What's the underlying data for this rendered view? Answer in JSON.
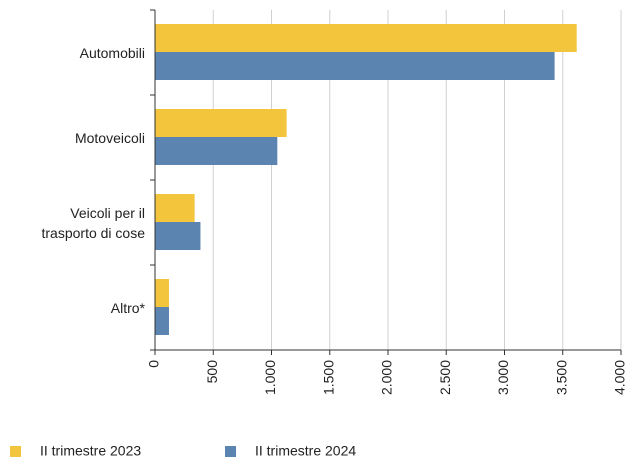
{
  "chart_data": {
    "type": "bar",
    "orientation": "horizontal",
    "categories": [
      "Automobili",
      "Motoveicoli",
      "Veicoli per il trasporto di cose",
      "Altro*"
    ],
    "series": [
      {
        "name": "II trimestre 2023",
        "color": "#f2c53d",
        "values": [
          3620,
          1130,
          340,
          120
        ]
      },
      {
        "name": "II trimestre 2024",
        "color": "#5b84b1",
        "values": [
          3430,
          1050,
          390,
          120
        ]
      }
    ],
    "xlim": [
      0,
      4000
    ],
    "xticks": [
      0,
      500,
      {
        "value": 1000,
        "label": "1.000"
      },
      {
        "value": 1500,
        "label": "1.500"
      },
      {
        "value": 2000,
        "label": "2.000"
      },
      {
        "value": 2500,
        "label": "2.500"
      },
      {
        "value": 3000,
        "label": "3.000"
      },
      {
        "value": 3500,
        "label": "3.500"
      },
      {
        "value": 4000,
        "label": "4.000"
      }
    ],
    "grid": true
  }
}
